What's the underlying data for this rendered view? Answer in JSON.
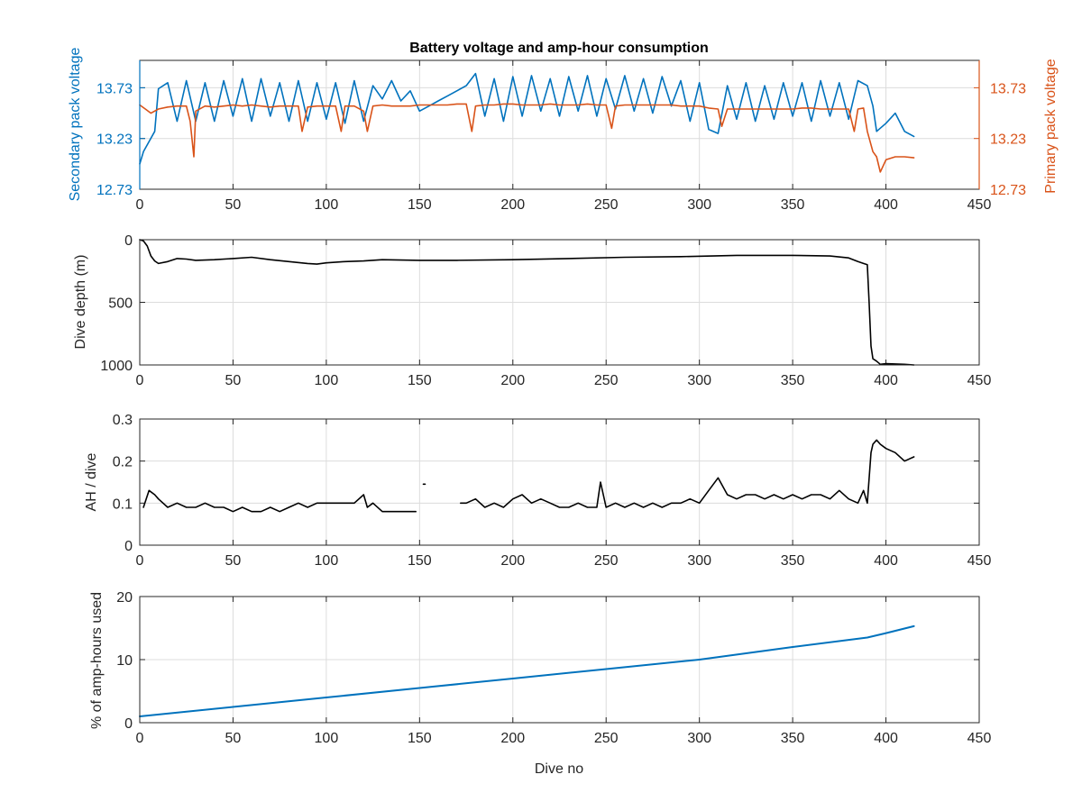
{
  "title": "Battery voltage and amp-hour consumption",
  "colors": {
    "secondary": "#0072BD",
    "primary": "#D95319",
    "depth": "#000000",
    "ah": "#000000",
    "pct": "#0072BD",
    "axis": "#262626",
    "grid": "#dcdcdc"
  },
  "chart_data": [
    {
      "type": "line",
      "title": "Battery voltage and amp-hour consumption",
      "xlabel": "",
      "ylabel_left": "Secondary pack voltage",
      "ylabel_right": "Primary pack voltage",
      "xlim": [
        0,
        450
      ],
      "ylim": [
        12.73,
        14.0
      ],
      "yticks": [
        12.73,
        13.23,
        13.73
      ],
      "xticks": [
        0,
        50,
        100,
        150,
        200,
        250,
        300,
        350,
        400,
        450
      ],
      "grid": true,
      "series": [
        {
          "axis": "left",
          "color": "#0072BD",
          "x": [
            0,
            2,
            5,
            8,
            10,
            15,
            20,
            25,
            30,
            35,
            40,
            45,
            50,
            55,
            60,
            65,
            70,
            75,
            80,
            85,
            90,
            95,
            100,
            105,
            110,
            115,
            120,
            125,
            130,
            135,
            140,
            145,
            150,
            155,
            160,
            165,
            170,
            175,
            180,
            185,
            190,
            195,
            200,
            205,
            210,
            215,
            220,
            225,
            230,
            235,
            240,
            245,
            250,
            255,
            260,
            265,
            270,
            275,
            280,
            285,
            290,
            295,
            300,
            305,
            310,
            315,
            320,
            325,
            330,
            335,
            340,
            345,
            350,
            355,
            360,
            365,
            370,
            375,
            380,
            385,
            390,
            393,
            395,
            400,
            405,
            410,
            415
          ],
          "y": [
            12.98,
            13.1,
            13.2,
            13.3,
            13.72,
            13.78,
            13.4,
            13.8,
            13.4,
            13.78,
            13.4,
            13.8,
            13.45,
            13.82,
            13.4,
            13.82,
            13.45,
            13.78,
            13.4,
            13.8,
            13.4,
            13.78,
            13.42,
            13.78,
            13.38,
            13.8,
            13.4,
            13.75,
            13.62,
            13.8,
            13.6,
            13.7,
            13.5,
            13.55,
            13.6,
            13.65,
            13.7,
            13.75,
            13.87,
            13.45,
            13.82,
            13.4,
            13.84,
            13.45,
            13.85,
            13.5,
            13.82,
            13.45,
            13.84,
            13.5,
            13.85,
            13.45,
            13.82,
            13.52,
            13.85,
            13.5,
            13.82,
            13.48,
            13.84,
            13.55,
            13.8,
            13.4,
            13.78,
            13.32,
            13.28,
            13.75,
            13.42,
            13.78,
            13.4,
            13.75,
            13.42,
            13.78,
            13.45,
            13.78,
            13.4,
            13.8,
            13.45,
            13.78,
            13.42,
            13.8,
            13.75,
            13.55,
            13.3,
            13.38,
            13.48,
            13.3,
            13.25
          ]
        },
        {
          "axis": "right",
          "color": "#D95319",
          "x": [
            0,
            3,
            6,
            10,
            15,
            20,
            25,
            27,
            29,
            30,
            35,
            40,
            45,
            50,
            55,
            60,
            65,
            70,
            75,
            80,
            85,
            87,
            90,
            95,
            100,
            105,
            108,
            110,
            115,
            120,
            122,
            125,
            130,
            135,
            140,
            145,
            150,
            155,
            160,
            165,
            170,
            175,
            178,
            180,
            185,
            190,
            195,
            200,
            205,
            210,
            215,
            220,
            225,
            230,
            235,
            240,
            245,
            250,
            253,
            255,
            260,
            265,
            270,
            275,
            280,
            285,
            290,
            295,
            300,
            305,
            310,
            312,
            315,
            320,
            325,
            330,
            335,
            340,
            345,
            350,
            355,
            360,
            365,
            370,
            375,
            380,
            383,
            385,
            388,
            390,
            393,
            395,
            397,
            400,
            405,
            410,
            415
          ],
          "y": [
            13.56,
            13.52,
            13.48,
            13.52,
            13.54,
            13.55,
            13.55,
            13.4,
            13.05,
            13.5,
            13.55,
            13.54,
            13.55,
            13.56,
            13.55,
            13.56,
            13.55,
            13.54,
            13.55,
            13.55,
            13.55,
            13.3,
            13.54,
            13.55,
            13.55,
            13.55,
            13.3,
            13.55,
            13.55,
            13.5,
            13.3,
            13.55,
            13.56,
            13.55,
            13.55,
            13.55,
            13.56,
            13.56,
            13.56,
            13.56,
            13.57,
            13.57,
            13.3,
            13.55,
            13.56,
            13.56,
            13.57,
            13.57,
            13.56,
            13.56,
            13.56,
            13.57,
            13.56,
            13.56,
            13.56,
            13.57,
            13.56,
            13.56,
            13.33,
            13.55,
            13.56,
            13.56,
            13.56,
            13.56,
            13.56,
            13.56,
            13.55,
            13.55,
            13.55,
            13.53,
            13.52,
            13.35,
            13.52,
            13.52,
            13.52,
            13.52,
            13.52,
            13.52,
            13.52,
            13.52,
            13.53,
            13.53,
            13.52,
            13.52,
            13.52,
            13.52,
            13.3,
            13.52,
            13.53,
            13.3,
            13.1,
            13.05,
            12.9,
            13.02,
            13.05,
            13.05,
            13.04
          ]
        }
      ]
    },
    {
      "type": "line",
      "ylabel": "Dive depth (m)",
      "xlim": [
        0,
        450
      ],
      "ylim": [
        1000,
        0
      ],
      "yticks": [
        0,
        500,
        1000
      ],
      "xticks": [
        0,
        50,
        100,
        150,
        200,
        250,
        300,
        350,
        400,
        450
      ],
      "grid": true,
      "series": [
        {
          "color": "#000000",
          "x": [
            0,
            2,
            4,
            6,
            8,
            10,
            15,
            20,
            25,
            30,
            40,
            50,
            60,
            70,
            80,
            90,
            95,
            100,
            110,
            120,
            130,
            150,
            170,
            200,
            230,
            260,
            290,
            320,
            350,
            370,
            380,
            385,
            388,
            390,
            391,
            392,
            393,
            395,
            397,
            400,
            410,
            415
          ],
          "y": [
            0,
            10,
            50,
            130,
            170,
            190,
            175,
            150,
            155,
            165,
            160,
            150,
            140,
            160,
            175,
            190,
            195,
            185,
            175,
            170,
            160,
            165,
            165,
            160,
            150,
            140,
            135,
            125,
            125,
            130,
            145,
            175,
            190,
            200,
            500,
            850,
            950,
            970,
            995,
            990,
            995,
            1000
          ]
        }
      ]
    },
    {
      "type": "line",
      "ylabel": "AH / dive",
      "xlim": [
        0,
        450
      ],
      "ylim": [
        0,
        0.3
      ],
      "yticks": [
        0,
        0.1,
        0.2,
        0.3
      ],
      "xticks": [
        0,
        50,
        100,
        150,
        200,
        250,
        300,
        350,
        400,
        450
      ],
      "grid": true,
      "series": [
        {
          "color": "#000000",
          "x": [
            [
              2,
              5,
              8,
              10,
              15,
              20,
              25,
              30,
              35,
              40,
              45,
              50,
              55,
              60,
              65,
              70,
              75,
              80,
              85,
              90,
              95,
              100,
              105,
              110,
              115,
              120,
              122,
              125,
              130,
              135,
              140,
              145,
              148
            ],
            [
              152,
              153
            ],
            [
              172,
              175,
              180,
              185,
              190,
              195,
              200,
              205,
              210,
              215,
              220,
              225,
              230,
              235,
              240,
              245,
              247,
              250,
              255,
              260,
              265,
              270,
              275,
              280,
              285,
              290,
              295,
              300,
              305,
              310,
              315,
              320,
              325,
              330,
              335,
              340,
              345,
              350,
              355,
              360,
              365,
              370,
              375,
              380,
              385,
              388,
              390,
              392,
              393,
              395,
              397,
              400,
              405,
              410,
              415
            ]
          ],
          "y": [
            [
              0.09,
              0.13,
              0.12,
              0.11,
              0.09,
              0.1,
              0.09,
              0.09,
              0.1,
              0.09,
              0.09,
              0.08,
              0.09,
              0.08,
              0.08,
              0.09,
              0.08,
              0.09,
              0.1,
              0.09,
              0.1,
              0.1,
              0.1,
              0.1,
              0.1,
              0.12,
              0.09,
              0.1,
              0.08,
              0.08,
              0.08,
              0.08,
              0.08
            ],
            [
              0.145,
              0.145
            ],
            [
              0.1,
              0.1,
              0.11,
              0.09,
              0.1,
              0.09,
              0.11,
              0.12,
              0.1,
              0.11,
              0.1,
              0.09,
              0.09,
              0.1,
              0.09,
              0.09,
              0.15,
              0.09,
              0.1,
              0.09,
              0.1,
              0.09,
              0.1,
              0.09,
              0.1,
              0.1,
              0.11,
              0.1,
              0.13,
              0.16,
              0.12,
              0.11,
              0.12,
              0.12,
              0.11,
              0.12,
              0.11,
              0.12,
              0.11,
              0.12,
              0.12,
              0.11,
              0.13,
              0.11,
              0.1,
              0.13,
              0.1,
              0.22,
              0.24,
              0.25,
              0.24,
              0.23,
              0.22,
              0.2,
              0.21
            ]
          ]
        }
      ]
    },
    {
      "type": "line",
      "xlabel": "Dive no",
      "ylabel": "% of amp-hours used",
      "xlim": [
        0,
        450
      ],
      "ylim": [
        0,
        20
      ],
      "yticks": [
        0,
        10,
        20
      ],
      "xticks": [
        0,
        50,
        100,
        150,
        200,
        250,
        300,
        350,
        400,
        450
      ],
      "grid": true,
      "series": [
        {
          "color": "#0072BD",
          "x": [
            0,
            50,
            100,
            150,
            200,
            250,
            300,
            350,
            390,
            400,
            415
          ],
          "y": [
            1.0,
            2.5,
            4.0,
            5.5,
            7.0,
            8.5,
            10.0,
            12.0,
            13.5,
            14.2,
            15.3
          ]
        }
      ]
    }
  ]
}
